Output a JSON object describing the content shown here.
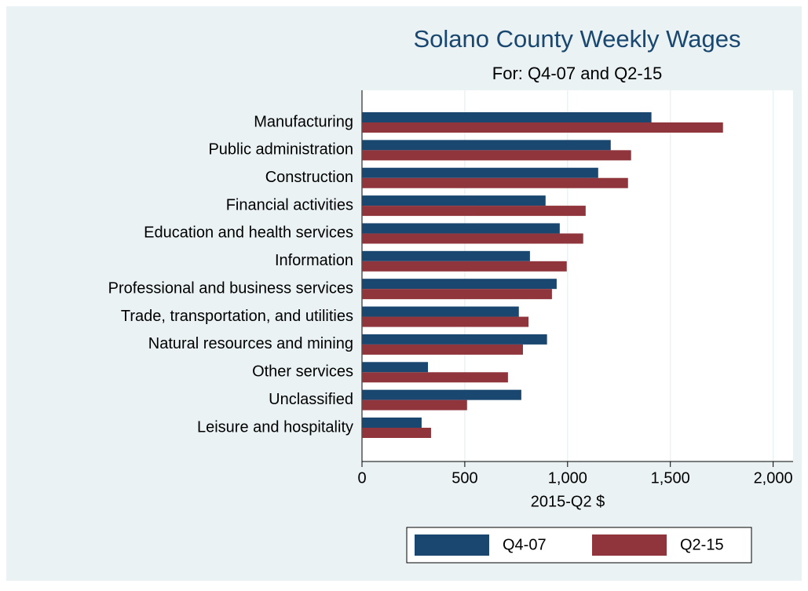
{
  "chart_data": {
    "type": "hbar",
    "title": "Solano County Weekly Wages",
    "subtitle": "For: Q4-07 and Q2-15",
    "x_label": "2015-Q2 $",
    "categories": [
      "Manufacturing",
      "Public administration",
      "Construction",
      "Financial activities",
      "Education and health services",
      "Information",
      "Professional and business services",
      "Trade, transportation, and utilities",
      "Natural resources and mining",
      "Other services",
      "Unclassified",
      "Leisure and hospitality"
    ],
    "series": [
      {
        "name": "Q4-07",
        "color": "#1a476f",
        "values": [
          1408,
          1210,
          1149,
          893,
          962,
          817,
          947,
          763,
          900,
          321,
          775,
          290
        ]
      },
      {
        "name": "Q2-15",
        "color": "#90353b",
        "values": [
          1756,
          1309,
          1294,
          1088,
          1076,
          996,
          924,
          810,
          783,
          710,
          511,
          336
        ]
      }
    ],
    "xlim": [
      0,
      2097
    ],
    "xticks": [
      0,
      500,
      {
        "value": 1000,
        "label": "1,000"
      },
      {
        "value": 1500,
        "label": "1,500"
      },
      {
        "value": 2000,
        "label": "2,000"
      }
    ],
    "grid": true,
    "legend": "bottom"
  }
}
